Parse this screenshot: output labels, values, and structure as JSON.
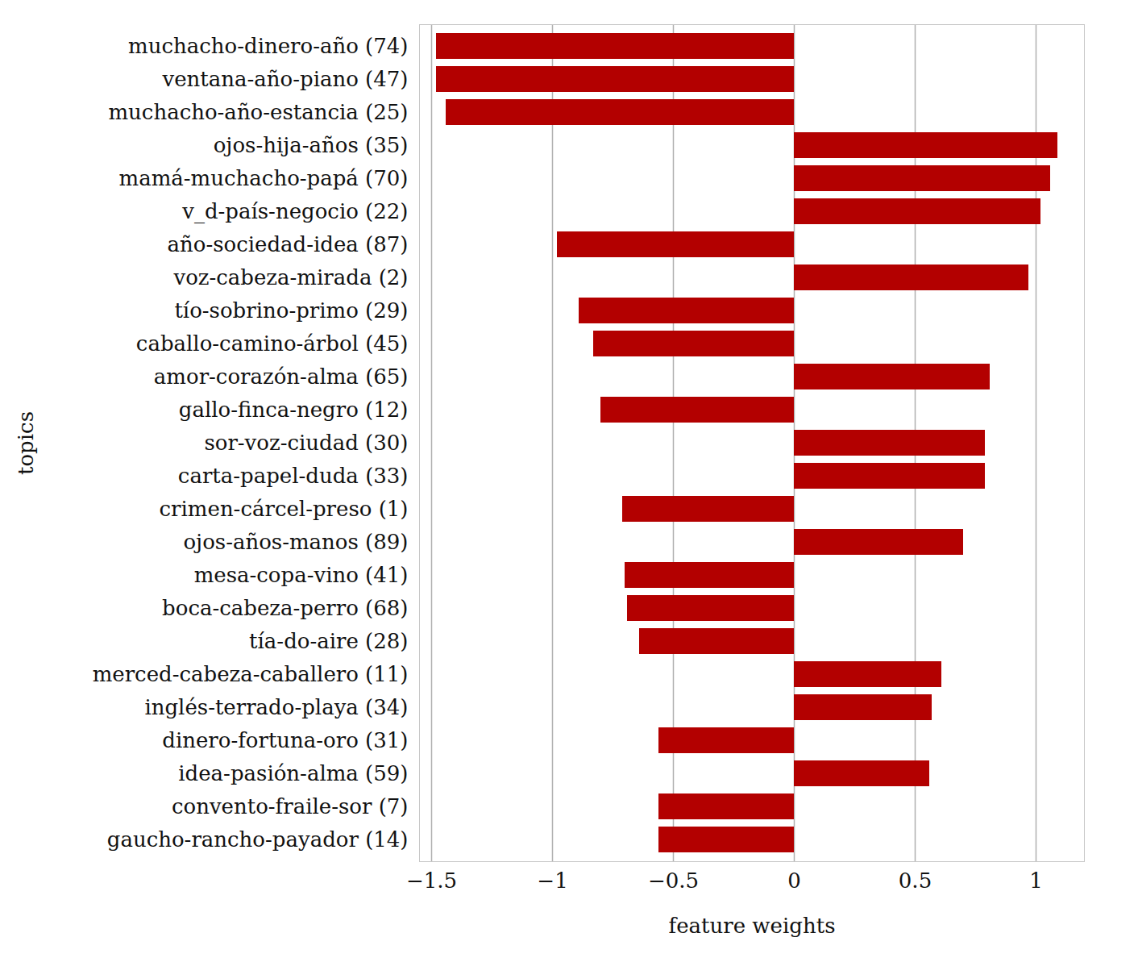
{
  "chart_data": {
    "type": "bar",
    "orientation": "horizontal",
    "x_label": "feature weights",
    "y_label": "topics",
    "categories": [
      "muchacho-dinero-año (74)",
      "ventana-año-piano (47)",
      "muchacho-año-estancia (25)",
      "ojos-hija-años (35)",
      "mamá-muchacho-papá (70)",
      "v_d-país-negocio (22)",
      "año-sociedad-idea (87)",
      "voz-cabeza-mirada (2)",
      "tío-sobrino-primo (29)",
      "caballo-camino-árbol (45)",
      "amor-corazón-alma (65)",
      "gallo-finca-negro (12)",
      "sor-voz-ciudad (30)",
      "carta-papel-duda (33)",
      "crimen-cárcel-preso (1)",
      "ojos-años-manos (89)",
      "mesa-copa-vino (41)",
      "boca-cabeza-perro (68)",
      "tía-do-aire (28)",
      "merced-cabeza-caballero (11)",
      "inglés-terrado-playa (34)",
      "dinero-fortuna-oro (31)",
      "idea-pasión-alma (59)",
      "convento-fraile-sor (7)",
      "gaucho-rancho-payador (14)"
    ],
    "values": [
      -1.48,
      -1.48,
      -1.44,
      1.09,
      1.06,
      1.02,
      -0.98,
      0.97,
      -0.89,
      -0.83,
      0.81,
      -0.8,
      0.79,
      0.79,
      -0.71,
      0.7,
      -0.7,
      -0.69,
      -0.64,
      0.61,
      0.57,
      -0.56,
      0.56,
      -0.56,
      -0.56
    ],
    "color": "#b30000",
    "xlim": [
      -1.55,
      1.2
    ],
    "xticks": [
      {
        "value": -1.5,
        "label": "−1.5"
      },
      {
        "value": -1,
        "label": "−1"
      },
      {
        "value": -0.5,
        "label": "−0.5"
      },
      0,
      0.5,
      1
    ],
    "grid": true
  }
}
